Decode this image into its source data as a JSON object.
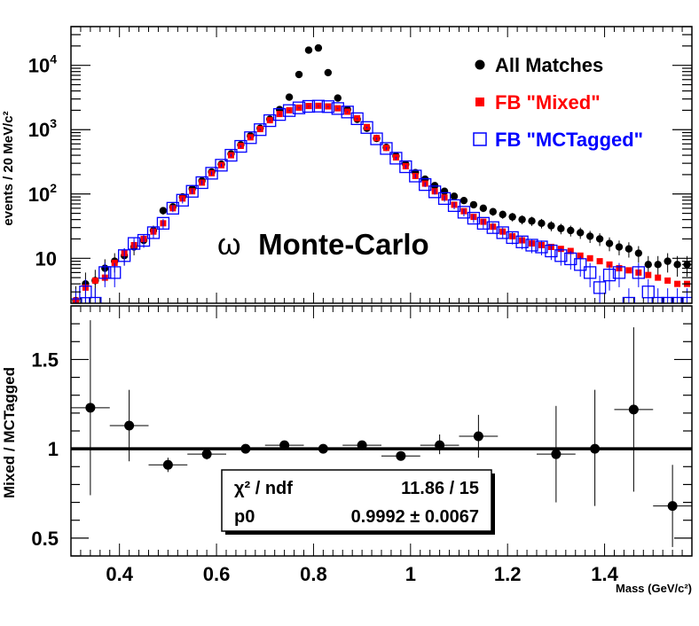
{
  "chart_data": [
    {
      "type": "scatter",
      "yscale": "log",
      "xlim": [
        0.3,
        1.58
      ],
      "ylim": [
        2,
        40000
      ],
      "ylabel": "events / 20 MeV/c²",
      "y_ticks": [
        {
          "value": 10,
          "base": "10",
          "exp": ""
        },
        {
          "value": 100,
          "base": "10",
          "exp": "2"
        },
        {
          "value": 1000,
          "base": "10",
          "exp": "3"
        },
        {
          "value": 10000,
          "base": "10",
          "exp": "4"
        }
      ],
      "annotation": {
        "symbol": "ω",
        "text": " Monte-Carlo"
      },
      "legend": [
        {
          "label": "All Matches",
          "color": "#000000",
          "marker": "circle"
        },
        {
          "label": "FB \"Mixed\"",
          "color": "#ff0000",
          "marker": "filled-square"
        },
        {
          "label": "FB \"MCTagged\"",
          "color": "#0000ff",
          "marker": "open-square"
        }
      ],
      "series": [
        {
          "name": "All Matches",
          "color": "#000000",
          "marker": "circle",
          "x": [
            0.31,
            0.33,
            0.35,
            0.37,
            0.39,
            0.41,
            0.43,
            0.45,
            0.47,
            0.49,
            0.51,
            0.53,
            0.55,
            0.57,
            0.59,
            0.61,
            0.63,
            0.65,
            0.67,
            0.69,
            0.71,
            0.73,
            0.75,
            0.77,
            0.79,
            0.81,
            0.83,
            0.85,
            0.87,
            0.89,
            0.91,
            0.93,
            0.95,
            0.97,
            0.99,
            1.01,
            1.03,
            1.05,
            1.07,
            1.09,
            1.11,
            1.13,
            1.15,
            1.17,
            1.19,
            1.21,
            1.23,
            1.25,
            1.27,
            1.29,
            1.31,
            1.33,
            1.35,
            1.37,
            1.39,
            1.41,
            1.43,
            1.45,
            1.47,
            1.49,
            1.51,
            1.53,
            1.55,
            1.57
          ],
          "y": [
            2.2,
            4,
            4.5,
            7,
            9,
            11,
            15,
            19,
            27,
            55,
            63,
            90,
            120,
            160,
            220,
            290,
            420,
            580,
            800,
            1050,
            1450,
            2050,
            3200,
            7200,
            17200,
            18600,
            7700,
            3100,
            2050,
            1450,
            1050,
            730,
            530,
            390,
            290,
            215,
            170,
            135,
            110,
            92,
            79,
            68,
            60,
            53,
            48,
            44,
            40,
            38,
            35,
            32,
            29,
            27,
            25,
            22,
            20,
            17,
            15,
            14,
            12,
            8,
            8,
            9,
            8,
            8
          ]
        },
        {
          "name": "FB \"Mixed\"",
          "color": "#ff0000",
          "marker": "filled-square",
          "x": [
            0.31,
            0.33,
            0.35,
            0.37,
            0.39,
            0.41,
            0.43,
            0.45,
            0.47,
            0.49,
            0.51,
            0.53,
            0.55,
            0.57,
            0.59,
            0.61,
            0.63,
            0.65,
            0.67,
            0.69,
            0.71,
            0.73,
            0.75,
            0.77,
            0.79,
            0.81,
            0.83,
            0.85,
            0.87,
            0.89,
            0.91,
            0.93,
            0.95,
            0.97,
            0.99,
            1.01,
            1.03,
            1.05,
            1.07,
            1.09,
            1.11,
            1.13,
            1.15,
            1.17,
            1.19,
            1.21,
            1.23,
            1.25,
            1.27,
            1.29,
            1.31,
            1.33,
            1.35,
            1.37,
            1.39,
            1.41,
            1.43,
            1.45,
            1.47,
            1.49,
            1.51,
            1.53,
            1.55,
            1.57
          ],
          "y": [
            2.2,
            3.5,
            4.5,
            5,
            8.5,
            12,
            16,
            20,
            26,
            35,
            60,
            85,
            110,
            150,
            210,
            280,
            400,
            560,
            760,
            1020,
            1400,
            1750,
            2000,
            2200,
            2330,
            2350,
            2300,
            2150,
            1900,
            1500,
            1100,
            740,
            520,
            370,
            270,
            190,
            145,
            110,
            88,
            68,
            54,
            44,
            37,
            31,
            26,
            22,
            19,
            17,
            16,
            15,
            14,
            13,
            11,
            10,
            9,
            8,
            7,
            6.5,
            6,
            5.5,
            5,
            4.5,
            4,
            4
          ]
        },
        {
          "name": "FB \"MCTagged\"",
          "color": "#0000ff",
          "marker": "open-square",
          "x": [
            0.31,
            0.33,
            0.35,
            0.37,
            0.39,
            0.41,
            0.43,
            0.45,
            0.47,
            0.49,
            0.51,
            0.53,
            0.55,
            0.57,
            0.59,
            0.61,
            0.63,
            0.65,
            0.67,
            0.69,
            0.71,
            0.73,
            0.75,
            0.77,
            0.79,
            0.81,
            0.83,
            0.85,
            0.87,
            0.89,
            0.91,
            0.93,
            0.95,
            0.97,
            0.99,
            1.01,
            1.03,
            1.05,
            1.07,
            1.09,
            1.11,
            1.13,
            1.15,
            1.17,
            1.19,
            1.21,
            1.23,
            1.25,
            1.27,
            1.29,
            1.31,
            1.33,
            1.35,
            1.37,
            1.39,
            1.41,
            1.43,
            1.45,
            1.47,
            1.49,
            1.51,
            1.53,
            1.55,
            1.57
          ],
          "y": [
            1.9,
            3,
            2,
            6,
            6,
            11,
            17,
            19,
            25,
            35,
            60,
            80,
            110,
            150,
            210,
            280,
            400,
            550,
            750,
            1000,
            1380,
            1720,
            1980,
            2180,
            2300,
            2320,
            2280,
            2130,
            1880,
            1480,
            1080,
            720,
            510,
            360,
            265,
            190,
            140,
            108,
            85,
            66,
            52,
            42,
            35,
            30,
            25,
            21,
            18,
            16,
            15,
            13,
            11,
            9.8,
            8,
            6,
            3.5,
            5.5,
            6,
            2,
            6,
            3,
            2,
            2,
            2,
            2
          ]
        }
      ]
    },
    {
      "type": "scatter",
      "xlim": [
        0.3,
        1.58
      ],
      "ylim": [
        0.4,
        1.8
      ],
      "xlabel": "Mass (GeV/c²)",
      "ylabel": "Mixed / MCTagged",
      "x_ticks": [
        "0.4",
        "0.6",
        "0.8",
        "1",
        "1.2",
        "1.4"
      ],
      "y_ticks": [
        "0.5",
        "1",
        "1.5"
      ],
      "fit_line": 1.0,
      "fit_box": {
        "row1_label": "χ² / ndf",
        "row1_value": "11.86 / 15",
        "row2_label": "p0",
        "row2_value": "0.9992 ± 0.0067"
      },
      "points": [
        {
          "x": 0.34,
          "y": 1.23,
          "xerr": 0.04,
          "ylo": 0.74,
          "yhi": 1.72
        },
        {
          "x": 0.42,
          "y": 1.13,
          "xerr": 0.04,
          "ylo": 0.93,
          "yhi": 1.33
        },
        {
          "x": 0.5,
          "y": 0.91,
          "xerr": 0.04,
          "ylo": 0.87,
          "yhi": 0.95
        },
        {
          "x": 0.58,
          "y": 0.97,
          "xerr": 0.04,
          "ylo": 0.94,
          "yhi": 1.0
        },
        {
          "x": 0.66,
          "y": 1.0,
          "xerr": 0.04,
          "ylo": 0.99,
          "yhi": 1.01
        },
        {
          "x": 0.74,
          "y": 1.02,
          "xerr": 0.04,
          "ylo": 1.01,
          "yhi": 1.03
        },
        {
          "x": 0.82,
          "y": 1.0,
          "xerr": 0.04,
          "ylo": 0.99,
          "yhi": 1.01
        },
        {
          "x": 0.9,
          "y": 1.02,
          "xerr": 0.04,
          "ylo": 1.01,
          "yhi": 1.03
        },
        {
          "x": 0.98,
          "y": 0.96,
          "xerr": 0.04,
          "ylo": 0.94,
          "yhi": 0.98
        },
        {
          "x": 1.06,
          "y": 1.02,
          "xerr": 0.04,
          "ylo": 0.97,
          "yhi": 1.08
        },
        {
          "x": 1.14,
          "y": 1.07,
          "xerr": 0.04,
          "ylo": 0.95,
          "yhi": 1.19
        },
        {
          "x": 1.3,
          "y": 0.97,
          "xerr": 0.04,
          "ylo": 0.7,
          "yhi": 1.24
        },
        {
          "x": 1.38,
          "y": 1.0,
          "xerr": 0.04,
          "ylo": 0.68,
          "yhi": 1.33
        },
        {
          "x": 1.46,
          "y": 1.22,
          "xerr": 0.04,
          "ylo": 0.76,
          "yhi": 1.68
        },
        {
          "x": 1.54,
          "y": 0.68,
          "xerr": 0.04,
          "ylo": 0.45,
          "yhi": 0.91
        }
      ]
    }
  ]
}
